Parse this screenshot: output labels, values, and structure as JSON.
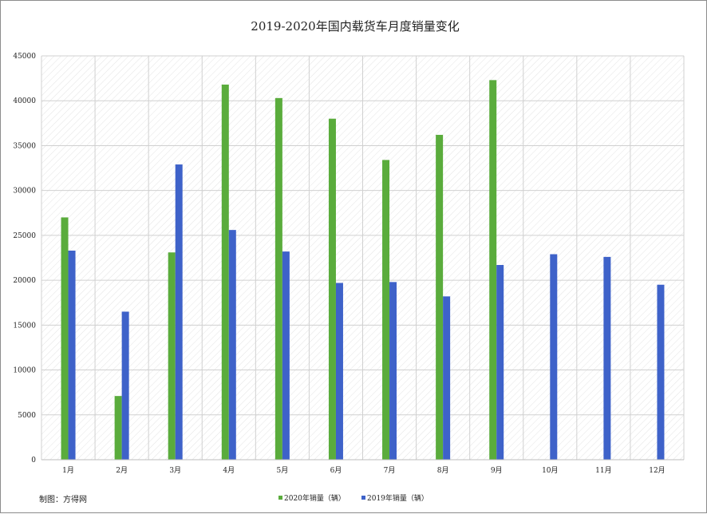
{
  "chart_data": {
    "type": "bar",
    "title": "2019-2020年国内载货车月度销量变化",
    "xlabel": "",
    "ylabel": "",
    "categories": [
      "1月",
      "2月",
      "3月",
      "4月",
      "5月",
      "6月",
      "7月",
      "8月",
      "9月",
      "10月",
      "11月",
      "12月"
    ],
    "series": [
      {
        "name": "2020年销量（辆）",
        "color": "#5aac3c",
        "values": [
          27000,
          7100,
          23100,
          41800,
          40300,
          38000,
          33400,
          36200,
          42300,
          null,
          null,
          null
        ]
      },
      {
        "name": "2019年销量（辆）",
        "color": "#3e62c9",
        "values": [
          23300,
          16500,
          32900,
          25600,
          23200,
          19700,
          19800,
          18200,
          21700,
          22900,
          22600,
          19500
        ]
      }
    ],
    "ylim": [
      0,
      45000
    ],
    "yticks": [
      0,
      5000,
      10000,
      15000,
      20000,
      25000,
      30000,
      35000,
      40000,
      45000
    ],
    "grid": true,
    "legend_position": "bottom"
  },
  "credit": "制图：方得网"
}
